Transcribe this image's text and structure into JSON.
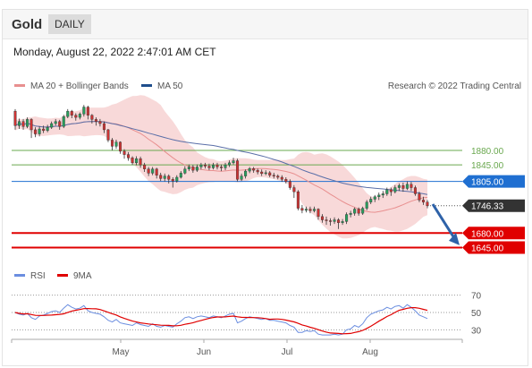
{
  "header": {
    "title": "Gold",
    "timeframe": "DAILY",
    "datetime": "Monday, August 22, 2022 2:47:01 AM CET"
  },
  "legend": {
    "bollinger": "MA 20 + Bollinger Bands",
    "ma50": "MA 50",
    "credit": "Research © 2022 Trading Central"
  },
  "rsi_legend": {
    "rsi": "RSI",
    "ma9": "9MA"
  },
  "colors": {
    "bull": "#27a05e",
    "bear": "#cc3333",
    "bands": "#f6cccc",
    "ma20": "#e88f8f",
    "ma50": "#5a6fa8",
    "target": "#6aa84f",
    "pivot": "#1f6fd1",
    "support": "#e00000",
    "rsi": "#6b8ee0",
    "rsi_ma": "#e00000",
    "arrow": "#2e62a8"
  },
  "chart_data": {
    "type": "candlestick",
    "x_axis": {
      "ticks": [
        "May",
        "Jun",
        "Jul",
        "Aug"
      ]
    },
    "price_range": [
      1620,
      2010
    ],
    "last_price": {
      "value": 1746.33,
      "label": "1746.33"
    },
    "levels": [
      {
        "value": 1880.0,
        "label": "1880.00",
        "kind": "target"
      },
      {
        "value": 1845.0,
        "label": "1845.00",
        "kind": "target"
      },
      {
        "value": 1805.0,
        "label": "1805.00",
        "kind": "pivot"
      },
      {
        "value": 1680.0,
        "label": "1680.00",
        "kind": "support"
      },
      {
        "value": 1645.0,
        "label": "1645.00",
        "kind": "support"
      }
    ],
    "arrow": {
      "from_price": 1750,
      "to_price": 1655
    },
    "candles": [
      [
        1975,
        1940,
        1980,
        1930
      ],
      [
        1940,
        1950,
        1957,
        1932
      ],
      [
        1950,
        1938,
        1956,
        1930
      ],
      [
        1938,
        1955,
        1960,
        1934
      ],
      [
        1955,
        1930,
        1958,
        1910
      ],
      [
        1930,
        1920,
        1936,
        1912
      ],
      [
        1920,
        1932,
        1938,
        1914
      ],
      [
        1932,
        1928,
        1940,
        1922
      ],
      [
        1928,
        1936,
        1942,
        1924
      ],
      [
        1936,
        1945,
        1950,
        1932
      ],
      [
        1945,
        1950,
        1956,
        1940
      ],
      [
        1950,
        1938,
        1954,
        1930
      ],
      [
        1938,
        1962,
        1966,
        1934
      ],
      [
        1962,
        1975,
        1980,
        1958
      ],
      [
        1975,
        1965,
        1978,
        1958
      ],
      [
        1965,
        1960,
        1970,
        1952
      ],
      [
        1960,
        1968,
        1972,
        1955
      ],
      [
        1968,
        1985,
        1990,
        1962
      ],
      [
        1985,
        1965,
        1988,
        1955
      ],
      [
        1965,
        1955,
        1968,
        1945
      ],
      [
        1955,
        1950,
        1960,
        1940
      ],
      [
        1950,
        1945,
        1956,
        1938
      ],
      [
        1945,
        1930,
        1950,
        1922
      ],
      [
        1930,
        1905,
        1932,
        1900
      ],
      [
        1905,
        1890,
        1910,
        1880
      ],
      [
        1890,
        1900,
        1906,
        1884
      ],
      [
        1900,
        1878,
        1902,
        1872
      ],
      [
        1878,
        1870,
        1883,
        1860
      ],
      [
        1870,
        1862,
        1876,
        1855
      ],
      [
        1862,
        1850,
        1866,
        1845
      ],
      [
        1850,
        1860,
        1866,
        1844
      ],
      [
        1860,
        1845,
        1865,
        1838
      ],
      [
        1845,
        1835,
        1850,
        1828
      ],
      [
        1835,
        1825,
        1840,
        1818
      ],
      [
        1825,
        1835,
        1840,
        1820
      ],
      [
        1835,
        1820,
        1838,
        1812
      ],
      [
        1820,
        1812,
        1826,
        1806
      ],
      [
        1812,
        1818,
        1824,
        1805
      ],
      [
        1818,
        1810,
        1822,
        1800
      ],
      [
        1810,
        1806,
        1815,
        1790
      ],
      [
        1806,
        1815,
        1820,
        1802
      ],
      [
        1815,
        1825,
        1830,
        1812
      ],
      [
        1825,
        1835,
        1842,
        1822
      ],
      [
        1835,
        1840,
        1846,
        1830
      ],
      [
        1840,
        1832,
        1845,
        1826
      ],
      [
        1832,
        1840,
        1846,
        1828
      ],
      [
        1840,
        1845,
        1850,
        1834
      ],
      [
        1845,
        1842,
        1850,
        1836
      ],
      [
        1842,
        1838,
        1848,
        1832
      ],
      [
        1838,
        1845,
        1850,
        1834
      ],
      [
        1845,
        1840,
        1850,
        1834
      ],
      [
        1840,
        1838,
        1846,
        1830
      ],
      [
        1838,
        1845,
        1850,
        1832
      ],
      [
        1845,
        1850,
        1856,
        1840
      ],
      [
        1850,
        1855,
        1862,
        1846
      ],
      [
        1855,
        1810,
        1860,
        1805
      ],
      [
        1810,
        1818,
        1824,
        1806
      ],
      [
        1818,
        1830,
        1834,
        1812
      ],
      [
        1830,
        1836,
        1840,
        1825
      ],
      [
        1836,
        1832,
        1840,
        1826
      ],
      [
        1832,
        1828,
        1836,
        1822
      ],
      [
        1828,
        1824,
        1834,
        1818
      ],
      [
        1824,
        1826,
        1832,
        1820
      ],
      [
        1826,
        1820,
        1830,
        1815
      ],
      [
        1820,
        1818,
        1826,
        1812
      ],
      [
        1818,
        1815,
        1822,
        1810
      ],
      [
        1815,
        1810,
        1820,
        1804
      ],
      [
        1810,
        1805,
        1815,
        1800
      ],
      [
        1805,
        1790,
        1810,
        1785
      ],
      [
        1790,
        1780,
        1796,
        1765
      ],
      [
        1780,
        1740,
        1784,
        1735
      ],
      [
        1740,
        1735,
        1748,
        1728
      ],
      [
        1735,
        1738,
        1744,
        1730
      ],
      [
        1738,
        1734,
        1744,
        1728
      ],
      [
        1734,
        1738,
        1744,
        1730
      ],
      [
        1738,
        1720,
        1740,
        1712
      ],
      [
        1720,
        1712,
        1726,
        1705
      ],
      [
        1712,
        1710,
        1720,
        1700
      ],
      [
        1710,
        1708,
        1716,
        1698
      ],
      [
        1708,
        1712,
        1718,
        1702
      ],
      [
        1712,
        1705,
        1716,
        1690
      ],
      [
        1705,
        1708,
        1714,
        1700
      ],
      [
        1708,
        1725,
        1730,
        1702
      ],
      [
        1725,
        1728,
        1734,
        1718
      ],
      [
        1728,
        1738,
        1742,
        1722
      ],
      [
        1738,
        1728,
        1742,
        1722
      ],
      [
        1728,
        1740,
        1744,
        1724
      ],
      [
        1740,
        1755,
        1760,
        1735
      ],
      [
        1755,
        1762,
        1768,
        1750
      ],
      [
        1762,
        1768,
        1772,
        1755
      ],
      [
        1768,
        1772,
        1778,
        1760
      ],
      [
        1772,
        1775,
        1782,
        1765
      ],
      [
        1775,
        1785,
        1790,
        1770
      ],
      [
        1785,
        1780,
        1790,
        1770
      ],
      [
        1780,
        1790,
        1796,
        1776
      ],
      [
        1790,
        1795,
        1800,
        1782
      ],
      [
        1795,
        1788,
        1802,
        1780
      ],
      [
        1788,
        1798,
        1805,
        1784
      ],
      [
        1798,
        1790,
        1804,
        1782
      ],
      [
        1790,
        1775,
        1795,
        1770
      ],
      [
        1775,
        1760,
        1780,
        1755
      ],
      [
        1760,
        1755,
        1768,
        1748
      ],
      [
        1755,
        1746,
        1760,
        1740
      ]
    ],
    "rsi": {
      "levels": [
        70,
        50,
        30
      ],
      "range": [
        20,
        80
      ],
      "values": [
        50,
        48,
        47,
        49,
        44,
        42,
        46,
        47,
        49,
        51,
        52,
        50,
        55,
        59,
        56,
        54,
        55,
        58,
        52,
        50,
        49,
        48,
        45,
        41,
        39,
        42,
        38,
        37,
        36,
        35,
        38,
        36,
        35,
        34,
        37,
        34,
        33,
        35,
        34,
        33,
        37,
        40,
        44,
        45,
        43,
        45,
        46,
        45,
        44,
        46,
        45,
        44,
        46,
        48,
        49,
        38,
        40,
        43,
        45,
        44,
        43,
        42,
        43,
        41,
        41,
        40,
        39,
        38,
        35,
        33,
        27,
        27,
        29,
        28,
        29,
        25,
        24,
        24,
        24,
        25,
        24,
        25,
        30,
        31,
        35,
        33,
        37,
        44,
        48,
        50,
        52,
        53,
        56,
        54,
        57,
        58,
        55,
        59,
        56,
        52,
        47,
        45,
        43
      ]
    }
  }
}
